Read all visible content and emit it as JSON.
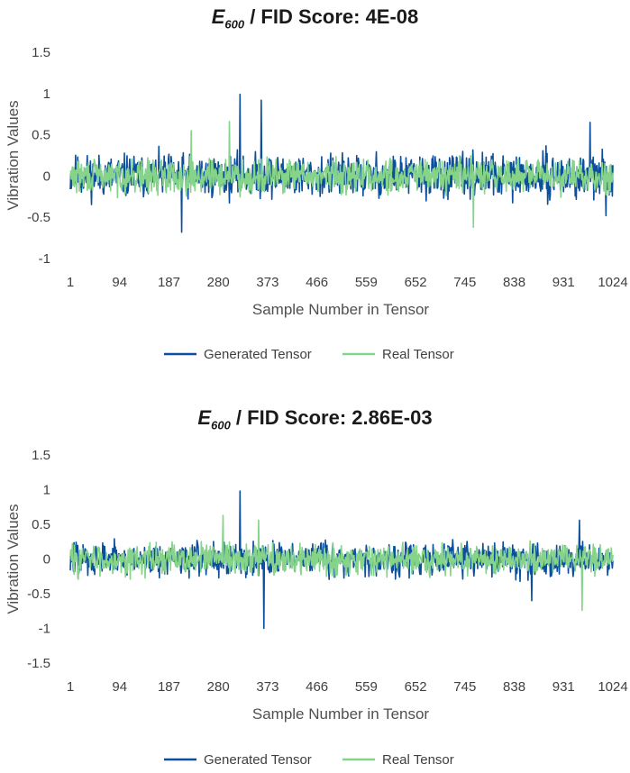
{
  "colors": {
    "generated": "#0B4F9C",
    "real": "#86D38A"
  },
  "chart_data": [
    {
      "type": "line",
      "title": {
        "symbol": "E",
        "subscript": "600",
        "text": " / FID Score: 4E-08"
      },
      "xlabel": "Sample Number in Tensor",
      "ylabel": "Vibration Values",
      "x_ticks": [
        "1",
        "94",
        "187",
        "280",
        "373",
        "466",
        "559",
        "652",
        "745",
        "838",
        "931",
        "1024"
      ],
      "y_ticks": [
        "1.5",
        "1",
        "0.5",
        "0",
        "-0.5",
        "-1"
      ],
      "ylim": [
        -1,
        1.5
      ],
      "xlim": [
        1,
        1024
      ],
      "grid": false,
      "legend": "bottom",
      "series": [
        {
          "name": "Generated Tensor",
          "amplitude": 0.28,
          "min": -0.68,
          "max": 0.99,
          "spikes": [
            [
              320,
              0.99
            ],
            [
              210,
              -0.68
            ],
            [
              360,
              0.92
            ],
            [
              980,
              0.65
            ],
            [
              1010,
              -0.48
            ]
          ]
        },
        {
          "name": "Real Tensor",
          "amplitude": 0.22,
          "min": -0.62,
          "max": 0.66,
          "spikes": [
            [
              300,
              0.66
            ],
            [
              760,
              -0.62
            ],
            [
              228,
              0.55
            ]
          ]
        }
      ]
    },
    {
      "type": "line",
      "title": {
        "symbol": "E",
        "subscript": "600",
        "text": " / FID Score: 2.86E-03"
      },
      "xlabel": "Sample Number in Tensor",
      "ylabel": "Vibration Values",
      "x_ticks": [
        "1",
        "94",
        "187",
        "280",
        "373",
        "466",
        "559",
        "652",
        "745",
        "838",
        "931",
        "1024"
      ],
      "y_ticks": [
        "1.5",
        "1",
        "0.5",
        "0",
        "-0.5",
        "-1",
        "-1.5"
      ],
      "ylim": [
        -1.5,
        1.5
      ],
      "xlim": [
        1,
        1024
      ],
      "grid": false,
      "legend": "bottom",
      "series": [
        {
          "name": "Generated Tensor",
          "amplitude": 0.26,
          "min": -1.0,
          "max": 0.98,
          "spikes": [
            [
              320,
              0.98
            ],
            [
              365,
              -1.0
            ],
            [
              870,
              -0.6
            ],
            [
              960,
              0.56
            ]
          ]
        },
        {
          "name": "Real Tensor",
          "amplitude": 0.24,
          "min": -0.74,
          "max": 0.63,
          "spikes": [
            [
              288,
              0.63
            ],
            [
              965,
              -0.74
            ],
            [
              355,
              0.56
            ]
          ]
        }
      ]
    }
  ]
}
